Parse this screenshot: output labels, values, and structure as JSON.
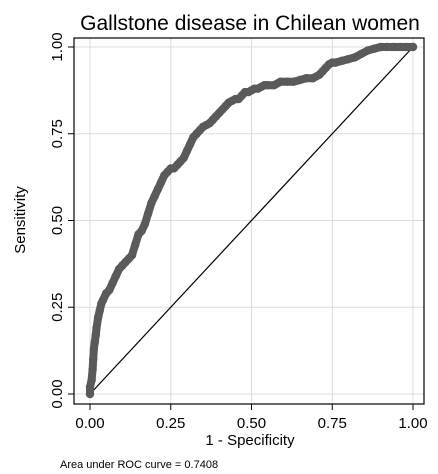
{
  "chart_data": {
    "type": "line",
    "title": "Gallstone disease in Chilean women",
    "xlabel": "1 - Specificity",
    "ylabel": "Sensitivity",
    "xlim": [
      0,
      1
    ],
    "ylim": [
      0,
      1
    ],
    "x_ticks": [
      "0.00",
      "0.25",
      "0.50",
      "0.75",
      "1.00"
    ],
    "y_ticks": [
      "0.00",
      "0.25",
      "0.50",
      "0.75",
      "1.00"
    ],
    "grid": true,
    "legend": "none",
    "note": "Area under ROC curve = 0.7408",
    "colors": {
      "roc": "#5a5a5a",
      "reference": "#000000",
      "grid": "#dcdcdc",
      "frame": "#000000"
    },
    "series": [
      {
        "style": "thick-markers",
        "x": [
          0.0,
          0.0,
          0.005,
          0.008,
          0.01,
          0.012,
          0.015,
          0.018,
          0.02,
          0.025,
          0.03,
          0.035,
          0.04,
          0.05,
          0.06,
          0.07,
          0.08,
          0.09,
          0.1,
          0.11,
          0.12,
          0.13,
          0.14,
          0.15,
          0.16,
          0.17,
          0.18,
          0.19,
          0.2,
          0.21,
          0.22,
          0.23,
          0.24,
          0.25,
          0.26,
          0.27,
          0.28,
          0.29,
          0.3,
          0.31,
          0.32,
          0.33,
          0.34,
          0.35,
          0.36,
          0.37,
          0.38,
          0.39,
          0.4,
          0.41,
          0.42,
          0.43,
          0.44,
          0.45,
          0.46,
          0.47,
          0.48,
          0.49,
          0.5,
          0.51,
          0.52,
          0.53,
          0.54,
          0.55,
          0.57,
          0.59,
          0.61,
          0.63,
          0.65,
          0.67,
          0.69,
          0.71,
          0.72,
          0.73,
          0.74,
          0.75,
          0.76,
          0.78,
          0.8,
          0.82,
          0.84,
          0.86,
          0.88,
          0.9,
          0.92,
          0.94,
          0.96,
          0.98,
          1.0
        ],
        "y": [
          0.0,
          0.02,
          0.04,
          0.07,
          0.1,
          0.13,
          0.15,
          0.17,
          0.19,
          0.22,
          0.24,
          0.26,
          0.27,
          0.29,
          0.3,
          0.32,
          0.34,
          0.36,
          0.37,
          0.38,
          0.39,
          0.4,
          0.43,
          0.46,
          0.47,
          0.49,
          0.52,
          0.55,
          0.57,
          0.59,
          0.61,
          0.63,
          0.64,
          0.65,
          0.65,
          0.66,
          0.67,
          0.68,
          0.7,
          0.72,
          0.74,
          0.75,
          0.76,
          0.77,
          0.775,
          0.78,
          0.79,
          0.8,
          0.81,
          0.82,
          0.83,
          0.84,
          0.845,
          0.85,
          0.85,
          0.86,
          0.87,
          0.87,
          0.875,
          0.88,
          0.88,
          0.885,
          0.89,
          0.89,
          0.89,
          0.9,
          0.9,
          0.9,
          0.905,
          0.91,
          0.91,
          0.92,
          0.93,
          0.94,
          0.95,
          0.955,
          0.955,
          0.96,
          0.965,
          0.97,
          0.98,
          0.99,
          0.995,
          1.0,
          1.0,
          1.0,
          1.0,
          1.0,
          1.0
        ]
      },
      {
        "style": "reference-line",
        "x": [
          0,
          1
        ],
        "y": [
          0,
          1
        ]
      }
    ]
  }
}
